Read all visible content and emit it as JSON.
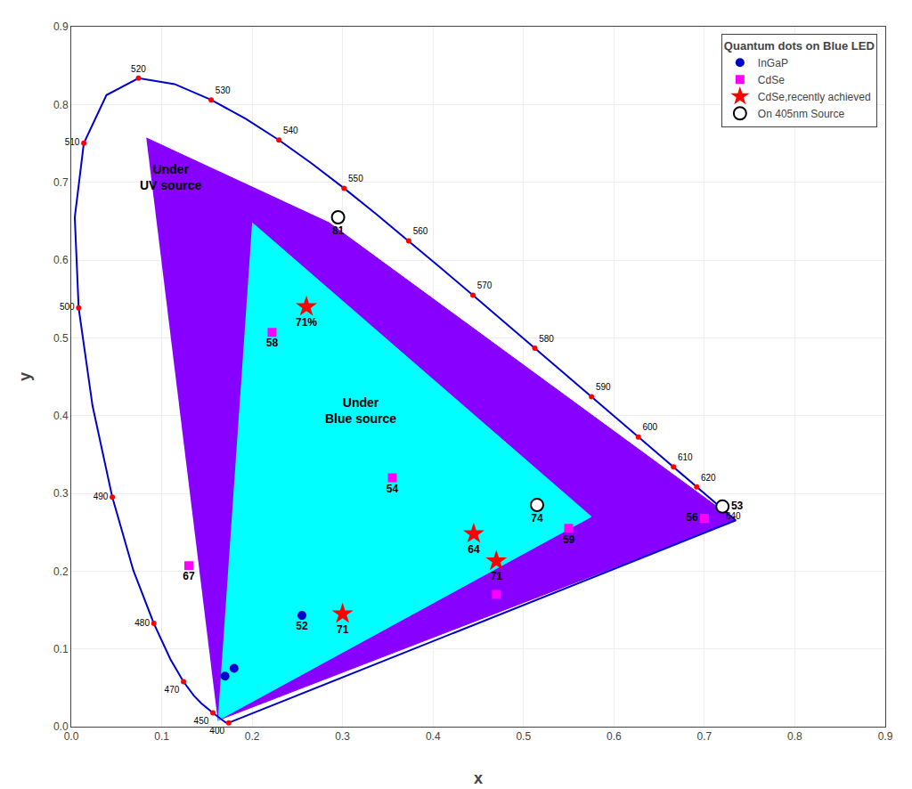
{
  "chart_data": {
    "type": "scatter",
    "xlabel": "x",
    "ylabel": "y",
    "xlim": [
      0.0,
      0.9
    ],
    "ylim": [
      0.0,
      0.9
    ],
    "xticks": [
      {
        "value": 0.0,
        "label": "0.0"
      },
      0.1,
      0.2,
      0.3,
      0.4,
      0.5,
      0.6,
      0.7,
      0.8,
      0.9
    ],
    "yticks": [
      {
        "value": 0.0,
        "label": "0.0"
      },
      0.1,
      0.2,
      0.3,
      0.4,
      0.5,
      0.6,
      0.7,
      0.8,
      0.9
    ],
    "grid": true,
    "legend": "upper right",
    "legend_title": "Quantum dots on Blue LED",
    "regions": [
      {
        "color": "#8800ff",
        "x": [
          0.083,
          0.285,
          0.735,
          0.162
        ],
        "y": [
          0.757,
          0.648,
          0.265,
          0.008
        ]
      },
      {
        "color": "#00ffff",
        "x": [
          0.2,
          0.575,
          0.162
        ],
        "y": [
          0.648,
          0.27,
          0.008
        ]
      }
    ],
    "curves": [
      {
        "color": "#0000cc",
        "x": [
          0.1741,
          0.1738,
          0.1736,
          0.1733,
          0.173,
          0.1726,
          0.1721,
          0.1714,
          0.1703,
          0.1689,
          0.1669,
          0.1644,
          0.1611,
          0.1566,
          0.151,
          0.144,
          0.1355,
          0.1241,
          0.1096,
          0.0913,
          0.0687,
          0.0454,
          0.0235,
          0.0082,
          0.0039,
          0.0139,
          0.0389,
          0.0743,
          0.1142,
          0.1547,
          0.1929,
          0.2296,
          0.2658,
          0.3016,
          0.3373,
          0.3731,
          0.4087,
          0.4441,
          0.4788,
          0.5125,
          0.5448,
          0.5752,
          0.6029,
          0.627,
          0.6482,
          0.6658,
          0.6801,
          0.6915,
          0.7006,
          0.7079,
          0.714,
          0.719,
          0.723,
          0.726,
          0.7283,
          0.73,
          0.7311,
          0.732,
          0.7327,
          0.7334,
          0.734,
          0.7344,
          0.7346,
          0.7347
        ],
        "y": [
          0.005,
          0.005,
          0.0049,
          0.0048,
          0.0048,
          0.0048,
          0.0048,
          0.0051,
          0.0058,
          0.0069,
          0.0086,
          0.0109,
          0.0138,
          0.0177,
          0.0227,
          0.0297,
          0.0399,
          0.0578,
          0.0868,
          0.1327,
          0.2007,
          0.295,
          0.4127,
          0.5384,
          0.6548,
          0.7502,
          0.812,
          0.8338,
          0.8262,
          0.8059,
          0.7816,
          0.7543,
          0.7243,
          0.6923,
          0.6589,
          0.6245,
          0.5896,
          0.5547,
          0.5202,
          0.4866,
          0.4544,
          0.4242,
          0.3965,
          0.3725,
          0.3514,
          0.334,
          0.3197,
          0.3083,
          0.2993,
          0.292,
          0.2859,
          0.2809,
          0.277,
          0.274,
          0.2717,
          0.27,
          0.2689,
          0.268,
          0.2673,
          0.2666,
          0.266,
          0.2656,
          0.2654,
          0.2653
        ]
      },
      {
        "color": "#0000cc",
        "x": [
          0.1741,
          0.7347
        ],
        "y": [
          0.005,
          0.2653
        ]
      }
    ],
    "wavelength_points": {
      "color": "red",
      "marker": "circle",
      "labels": [
        400,
        450,
        470,
        480,
        490,
        500,
        510,
        520,
        530,
        540,
        550,
        560,
        570,
        580,
        590,
        600,
        610,
        620,
        640
      ],
      "x": [
        0.1741,
        0.1566,
        0.1241,
        0.0913,
        0.0454,
        0.0082,
        0.0139,
        0.0743,
        0.1547,
        0.2296,
        0.3016,
        0.3731,
        0.4441,
        0.5125,
        0.5752,
        0.627,
        0.6658,
        0.6915,
        0.719
      ],
      "y": [
        0.005,
        0.0177,
        0.0578,
        0.1327,
        0.295,
        0.5384,
        0.7502,
        0.8338,
        0.8059,
        0.7543,
        0.6923,
        0.6245,
        0.5547,
        0.4866,
        0.4242,
        0.3725,
        0.334,
        0.3083,
        0.2809
      ]
    },
    "series": [
      {
        "name": "InGaP",
        "color": "#0000cc",
        "marker": "circle",
        "x": [
          0.255,
          0.17,
          0.18
        ],
        "y": [
          0.143,
          0.065,
          0.075
        ],
        "labels": [
          "52",
          null,
          null
        ]
      },
      {
        "name": "CdSe",
        "color": "#ff00ff",
        "marker": "square",
        "x": [
          0.222,
          0.355,
          0.13,
          0.47,
          0.55,
          0.7
        ],
        "y": [
          0.507,
          0.32,
          0.207,
          0.17,
          0.255,
          0.268
        ],
        "labels": [
          "58",
          "54",
          "67",
          null,
          "59",
          "56"
        ]
      },
      {
        "name": "CdSe,recently achieved",
        "color": "#ff0000",
        "marker": "star",
        "x": [
          0.26,
          0.445,
          0.47,
          0.3
        ],
        "y": [
          0.54,
          0.248,
          0.213,
          0.145
        ],
        "labels": [
          "71%",
          "64",
          "71",
          "71"
        ]
      },
      {
        "name": "On 405nm Source",
        "color": "#000000",
        "marker": "circle-open",
        "x": [
          0.295,
          0.515,
          0.72
        ],
        "y": [
          0.655,
          0.285,
          0.283
        ],
        "labels": [
          "81",
          "74",
          "53"
        ]
      }
    ],
    "annotations": [
      {
        "text": "Under\nUV source",
        "x": 0.11,
        "y": 0.685
      },
      {
        "text": "Under\nBlue source",
        "x": 0.32,
        "y": 0.385
      }
    ]
  }
}
